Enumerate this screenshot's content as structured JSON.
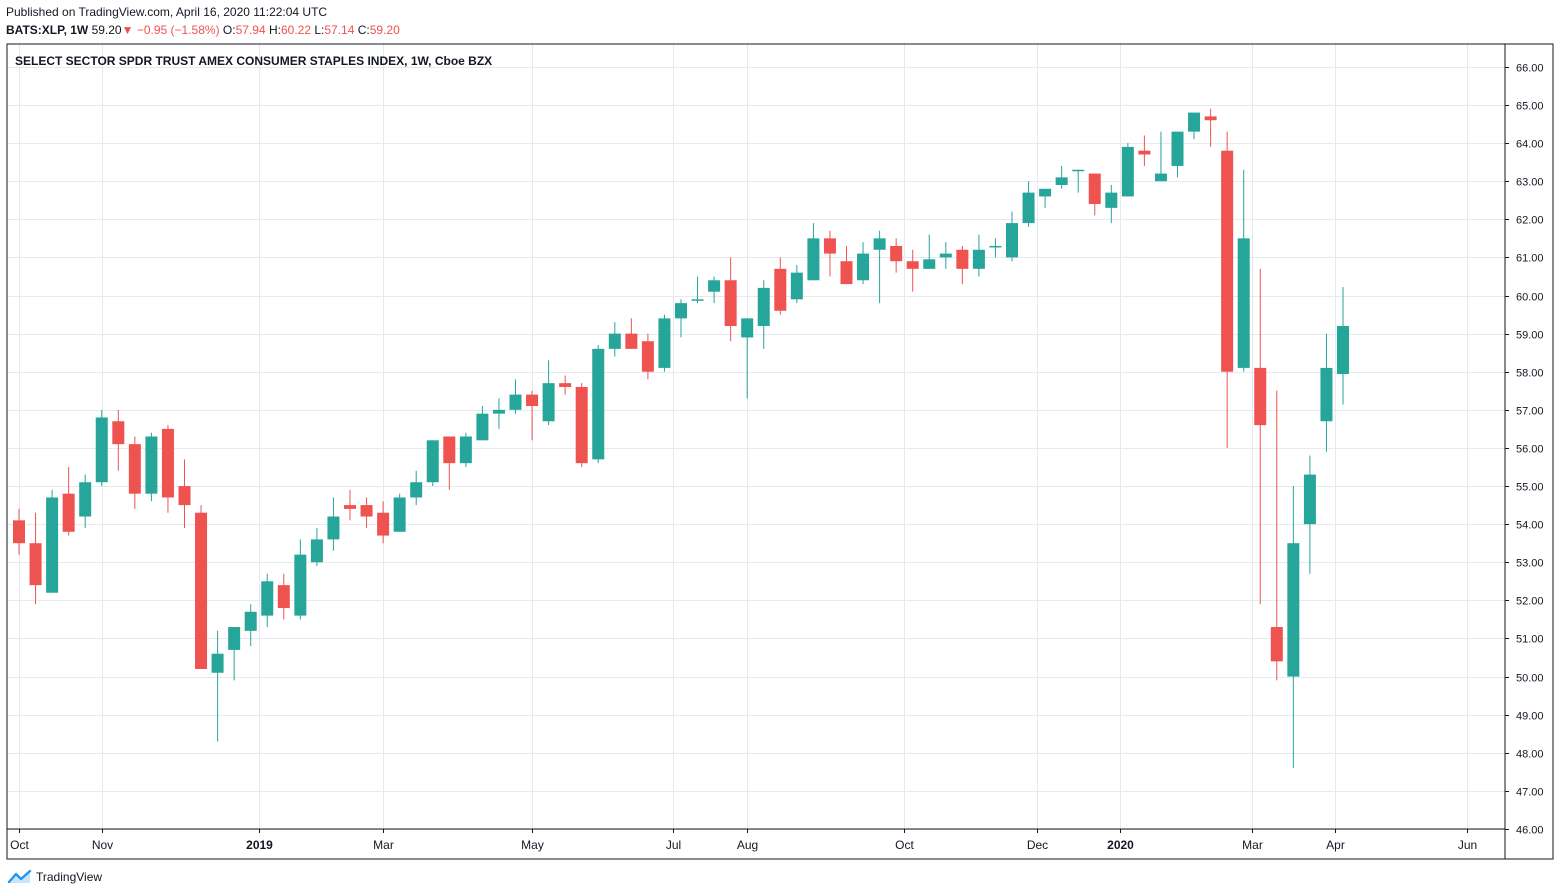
{
  "header": {
    "published": "Published on TradingView.com, April 16, 2020 11:22:04 UTC",
    "symbol": "BATS:XLP, 1W",
    "last": "59.20",
    "change_arrow": "▼",
    "change": "−0.95 (−1.58%)",
    "o_label": "O:",
    "o_value": "57.94",
    "h_label": "H:",
    "h_value": "60.22",
    "l_label": "L:",
    "l_value": "57.14",
    "c_label": "C:",
    "c_value": "59.20"
  },
  "brand": {
    "name": "TradingView",
    "icon": "tradingview-logo-icon"
  },
  "colors": {
    "up": "#26a69a",
    "down": "#ef5350",
    "grid": "#e6e9ee",
    "axis": "#131722"
  },
  "chart_data": {
    "type": "candlestick",
    "title": "SELECT SECTOR SPDR TRUST AMEX CONSUMER STAPLES INDEX, 1W, Cboe BZX",
    "y_range": [
      46.0,
      66.6
    ],
    "y_ticks": [
      "66.00",
      "65.00",
      "64.00",
      "63.00",
      "62.00",
      "61.00",
      "60.00",
      "59.00",
      "58.00",
      "57.00",
      "56.00",
      "55.00",
      "54.00",
      "53.00",
      "52.00",
      "51.00",
      "50.00",
      "49.00",
      "48.00",
      "47.00",
      "46.00"
    ],
    "x_labels": [
      {
        "label": "Oct",
        "index": 0,
        "bold": false
      },
      {
        "label": "Nov",
        "index": 5,
        "bold": false
      },
      {
        "label": "2019",
        "index": 14.5,
        "bold": true
      },
      {
        "label": "Mar",
        "index": 22,
        "bold": false
      },
      {
        "label": "May",
        "index": 31,
        "bold": false
      },
      {
        "label": "Jul",
        "index": 39.5,
        "bold": false
      },
      {
        "label": "Aug",
        "index": 44,
        "bold": false
      },
      {
        "label": "Oct",
        "index": 53.5,
        "bold": false
      },
      {
        "label": "Dec",
        "index": 61.5,
        "bold": false
      },
      {
        "label": "2020",
        "index": 66.5,
        "bold": true
      },
      {
        "label": "Mar",
        "index": 74.5,
        "bold": false
      },
      {
        "label": "Apr",
        "index": 79.5,
        "bold": false
      },
      {
        "label": "Jun",
        "index": 87.5,
        "bold": false
      }
    ],
    "candles": [
      {
        "o": 54.1,
        "h": 54.4,
        "l": 53.2,
        "c": 53.5
      },
      {
        "o": 53.5,
        "h": 54.3,
        "l": 51.9,
        "c": 52.4
      },
      {
        "o": 52.2,
        "h": 54.9,
        "l": 52.2,
        "c": 54.7
      },
      {
        "o": 54.8,
        "h": 55.5,
        "l": 53.7,
        "c": 53.8
      },
      {
        "o": 54.2,
        "h": 55.3,
        "l": 53.9,
        "c": 55.1
      },
      {
        "o": 55.1,
        "h": 57.0,
        "l": 55.0,
        "c": 56.8
      },
      {
        "o": 56.7,
        "h": 57.0,
        "l": 55.4,
        "c": 56.1
      },
      {
        "o": 56.1,
        "h": 56.3,
        "l": 54.4,
        "c": 54.8
      },
      {
        "o": 54.8,
        "h": 56.4,
        "l": 54.6,
        "c": 56.3
      },
      {
        "o": 56.5,
        "h": 56.6,
        "l": 54.3,
        "c": 54.7
      },
      {
        "o": 55.0,
        "h": 55.7,
        "l": 53.9,
        "c": 54.5
      },
      {
        "o": 54.3,
        "h": 54.5,
        "l": 50.2,
        "c": 50.2
      },
      {
        "o": 50.1,
        "h": 51.2,
        "l": 48.3,
        "c": 50.6
      },
      {
        "o": 50.7,
        "h": 51.3,
        "l": 49.9,
        "c": 51.3
      },
      {
        "o": 51.2,
        "h": 51.9,
        "l": 50.8,
        "c": 51.7
      },
      {
        "o": 51.6,
        "h": 52.7,
        "l": 51.3,
        "c": 52.5
      },
      {
        "o": 52.4,
        "h": 52.7,
        "l": 51.5,
        "c": 51.8
      },
      {
        "o": 51.6,
        "h": 53.6,
        "l": 51.5,
        "c": 53.2
      },
      {
        "o": 53.0,
        "h": 53.9,
        "l": 52.9,
        "c": 53.6
      },
      {
        "o": 53.6,
        "h": 54.7,
        "l": 53.3,
        "c": 54.2
      },
      {
        "o": 54.5,
        "h": 54.9,
        "l": 54.1,
        "c": 54.4
      },
      {
        "o": 54.5,
        "h": 54.7,
        "l": 53.9,
        "c": 54.2
      },
      {
        "o": 54.3,
        "h": 54.6,
        "l": 53.5,
        "c": 53.7
      },
      {
        "o": 53.8,
        "h": 54.8,
        "l": 53.8,
        "c": 54.7
      },
      {
        "o": 54.7,
        "h": 55.4,
        "l": 54.5,
        "c": 55.1
      },
      {
        "o": 55.1,
        "h": 56.2,
        "l": 55.0,
        "c": 56.2
      },
      {
        "o": 56.3,
        "h": 56.3,
        "l": 54.9,
        "c": 55.6
      },
      {
        "o": 55.6,
        "h": 56.4,
        "l": 55.5,
        "c": 56.3
      },
      {
        "o": 56.2,
        "h": 57.1,
        "l": 56.2,
        "c": 56.9
      },
      {
        "o": 56.9,
        "h": 57.3,
        "l": 56.5,
        "c": 57.0
      },
      {
        "o": 57.0,
        "h": 57.8,
        "l": 56.9,
        "c": 57.4
      },
      {
        "o": 57.4,
        "h": 57.5,
        "l": 56.2,
        "c": 57.1
      },
      {
        "o": 56.7,
        "h": 58.3,
        "l": 56.6,
        "c": 57.7
      },
      {
        "o": 57.7,
        "h": 57.9,
        "l": 57.4,
        "c": 57.6
      },
      {
        "o": 57.6,
        "h": 57.7,
        "l": 55.5,
        "c": 55.6
      },
      {
        "o": 55.7,
        "h": 58.7,
        "l": 55.6,
        "c": 58.6
      },
      {
        "o": 58.6,
        "h": 59.3,
        "l": 58.4,
        "c": 59.0
      },
      {
        "o": 59.0,
        "h": 59.4,
        "l": 58.6,
        "c": 58.6
      },
      {
        "o": 58.8,
        "h": 59.0,
        "l": 57.8,
        "c": 58.0
      },
      {
        "o": 58.1,
        "h": 59.5,
        "l": 58.0,
        "c": 59.4
      },
      {
        "o": 59.4,
        "h": 59.9,
        "l": 58.9,
        "c": 59.8
      },
      {
        "o": 59.9,
        "h": 60.5,
        "l": 59.8,
        "c": 59.9
      },
      {
        "o": 60.1,
        "h": 60.5,
        "l": 59.8,
        "c": 60.4
      },
      {
        "o": 60.4,
        "h": 61.0,
        "l": 58.8,
        "c": 59.2
      },
      {
        "o": 58.9,
        "h": 59.4,
        "l": 57.3,
        "c": 59.4
      },
      {
        "o": 59.2,
        "h": 60.4,
        "l": 58.6,
        "c": 60.2
      },
      {
        "o": 60.7,
        "h": 61.0,
        "l": 59.5,
        "c": 59.6
      },
      {
        "o": 59.9,
        "h": 60.8,
        "l": 59.8,
        "c": 60.6
      },
      {
        "o": 60.4,
        "h": 61.9,
        "l": 60.4,
        "c": 61.5
      },
      {
        "o": 61.5,
        "h": 61.7,
        "l": 60.5,
        "c": 61.1
      },
      {
        "o": 60.9,
        "h": 61.3,
        "l": 60.3,
        "c": 60.3
      },
      {
        "o": 60.4,
        "h": 61.4,
        "l": 60.3,
        "c": 61.1
      },
      {
        "o": 61.2,
        "h": 61.7,
        "l": 59.8,
        "c": 61.5
      },
      {
        "o": 61.3,
        "h": 61.5,
        "l": 60.6,
        "c": 60.9
      },
      {
        "o": 60.9,
        "h": 61.2,
        "l": 60.1,
        "c": 60.7
      },
      {
        "o": 60.7,
        "h": 61.6,
        "l": 60.7,
        "c": 60.95
      },
      {
        "o": 61.0,
        "h": 61.4,
        "l": 60.7,
        "c": 61.1
      },
      {
        "o": 61.2,
        "h": 61.3,
        "l": 60.3,
        "c": 60.7
      },
      {
        "o": 60.7,
        "h": 61.6,
        "l": 60.5,
        "c": 61.2
      },
      {
        "o": 61.3,
        "h": 61.5,
        "l": 61.0,
        "c": 61.3
      },
      {
        "o": 61.0,
        "h": 62.2,
        "l": 60.9,
        "c": 61.9
      },
      {
        "o": 61.9,
        "h": 63.0,
        "l": 61.8,
        "c": 62.7
      },
      {
        "o": 62.6,
        "h": 62.8,
        "l": 62.3,
        "c": 62.8
      },
      {
        "o": 62.9,
        "h": 63.4,
        "l": 62.8,
        "c": 63.1
      },
      {
        "o": 63.3,
        "h": 63.3,
        "l": 62.7,
        "c": 63.3
      },
      {
        "o": 63.2,
        "h": 63.2,
        "l": 62.1,
        "c": 62.4
      },
      {
        "o": 62.3,
        "h": 62.9,
        "l": 61.9,
        "c": 62.7
      },
      {
        "o": 62.6,
        "h": 64.0,
        "l": 62.6,
        "c": 63.9
      },
      {
        "o": 63.8,
        "h": 64.2,
        "l": 63.4,
        "c": 63.7
      },
      {
        "o": 63.0,
        "h": 64.3,
        "l": 63.0,
        "c": 63.2
      },
      {
        "o": 63.4,
        "h": 64.3,
        "l": 63.1,
        "c": 64.3
      },
      {
        "o": 64.3,
        "h": 64.8,
        "l": 64.1,
        "c": 64.8
      },
      {
        "o": 64.7,
        "h": 64.9,
        "l": 63.9,
        "c": 64.6
      },
      {
        "o": 63.8,
        "h": 64.3,
        "l": 56.0,
        "c": 58.0
      },
      {
        "o": 58.1,
        "h": 63.3,
        "l": 58.0,
        "c": 61.5
      },
      {
        "o": 58.1,
        "h": 60.7,
        "l": 51.9,
        "c": 56.6
      },
      {
        "o": 51.3,
        "h": 57.5,
        "l": 49.9,
        "c": 50.4
      },
      {
        "o": 50.0,
        "h": 55.0,
        "l": 47.6,
        "c": 53.5
      },
      {
        "o": 54.0,
        "h": 55.8,
        "l": 52.7,
        "c": 55.3
      },
      {
        "o": 56.7,
        "h": 59.0,
        "l": 55.9,
        "c": 58.1
      },
      {
        "o": 57.94,
        "h": 60.22,
        "l": 57.14,
        "c": 59.2
      }
    ]
  }
}
